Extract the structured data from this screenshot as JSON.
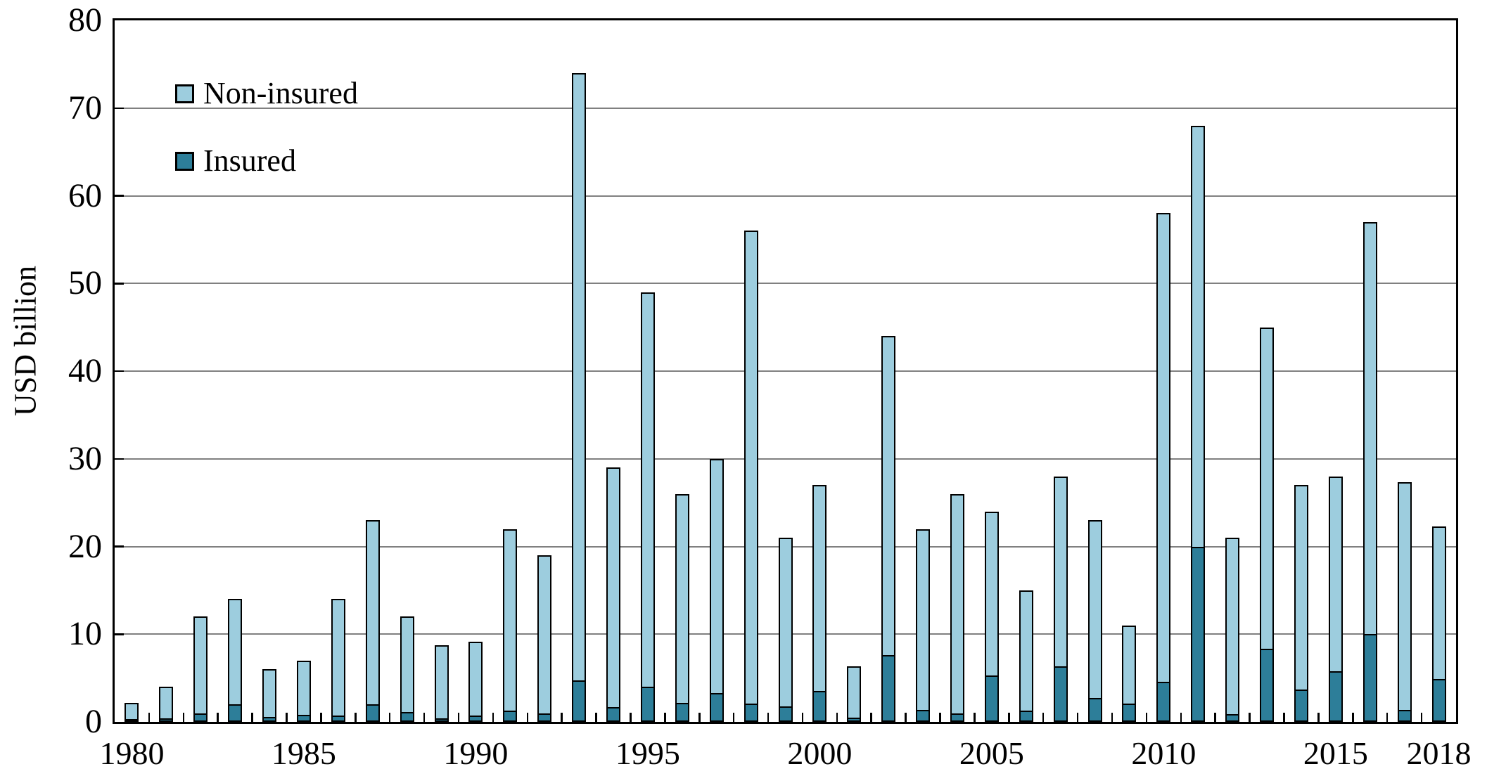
{
  "chart_data": {
    "type": "bar",
    "stacked": true,
    "title": "",
    "xlabel": "",
    "ylabel": "USD billion",
    "ylim": [
      0,
      80
    ],
    "ytick_interval": 10,
    "yticks": [
      0,
      10,
      20,
      30,
      40,
      50,
      60,
      70,
      80
    ],
    "grid": "horizontal",
    "legend_position": "top-left-inside",
    "categories": [
      1980,
      1981,
      1982,
      1983,
      1984,
      1985,
      1986,
      1987,
      1988,
      1989,
      1990,
      1991,
      1992,
      1993,
      1994,
      1995,
      1996,
      1997,
      1998,
      1999,
      2000,
      2001,
      2002,
      2003,
      2004,
      2005,
      2006,
      2007,
      2008,
      2009,
      2010,
      2011,
      2012,
      2013,
      2014,
      2015,
      2016,
      2017,
      2018
    ],
    "xtick_labels": [
      {
        "label": "1980",
        "index": 0
      },
      {
        "label": "1985",
        "index": 5
      },
      {
        "label": "1990",
        "index": 10
      },
      {
        "label": "1995",
        "index": 15
      },
      {
        "label": "2000",
        "index": 20
      },
      {
        "label": "2005",
        "index": 25
      },
      {
        "label": "2010",
        "index": 30
      },
      {
        "label": "2015",
        "index": 35
      },
      {
        "label": "2018",
        "index": 38
      }
    ],
    "series": [
      {
        "name": "Non-insured",
        "color": "#9dcdde",
        "values": [
          2.0,
          3.6,
          11.0,
          12.0,
          5.4,
          6.2,
          13.3,
          21.0,
          10.9,
          8.3,
          8.4,
          20.7,
          18.0,
          69.3,
          27.3,
          45.0,
          23.8,
          26.7,
          53.9,
          19.2,
          23.5,
          5.8,
          36.4,
          20.6,
          25.0,
          18.7,
          13.7,
          21.7,
          20.3,
          8.9,
          53.4,
          48.0,
          20.1,
          36.7,
          23.3,
          22.2,
          47.0,
          25.9,
          17.4
        ]
      },
      {
        "name": "Insured",
        "color": "#2d7e99",
        "values": [
          0.2,
          0.4,
          1.0,
          2.0,
          0.6,
          0.8,
          0.7,
          2.0,
          1.1,
          0.4,
          0.7,
          1.3,
          1.0,
          4.7,
          1.7,
          4.0,
          2.2,
          3.3,
          2.1,
          1.8,
          3.5,
          0.5,
          7.6,
          1.4,
          1.0,
          5.3,
          1.3,
          6.3,
          2.7,
          2.1,
          4.6,
          20.0,
          0.9,
          8.3,
          3.7,
          5.8,
          10.0,
          1.4,
          4.9
        ]
      }
    ],
    "colors": {
      "gridline": "#808080",
      "axis": "#000000",
      "background": "#ffffff"
    }
  }
}
